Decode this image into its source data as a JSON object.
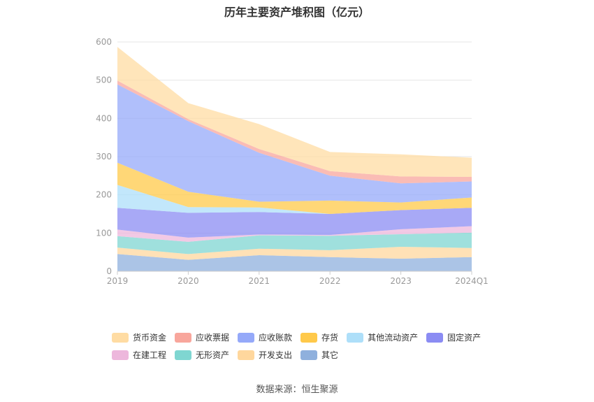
{
  "title": "历年主要资产堆积图（亿元）",
  "source": "数据来源：恒生聚源",
  "chart_data": {
    "type": "area",
    "stacked": true,
    "categories": [
      "2019",
      "2020",
      "2021",
      "2022",
      "2023",
      "2024Q1"
    ],
    "ylim": [
      0,
      600
    ],
    "yticks": [
      0,
      100,
      200,
      300,
      400,
      500,
      600
    ],
    "grid": true,
    "legend_position": "bottom",
    "series": [
      {
        "name": "其它",
        "color": "#8fb0dd",
        "values": [
          45,
          30,
          42,
          37,
          33,
          37
        ]
      },
      {
        "name": "开发支出",
        "color": "#ffd79d",
        "values": [
          17,
          15,
          17,
          18,
          31,
          24
        ]
      },
      {
        "name": "无形资产",
        "color": "#7fd6d1",
        "values": [
          30,
          32,
          35,
          38,
          33,
          40
        ]
      },
      {
        "name": "在建工程",
        "color": "#edb7dc",
        "values": [
          17,
          11,
          2,
          2,
          13,
          17
        ]
      },
      {
        "name": "固定资产",
        "color": "#8b8cf3",
        "values": [
          57,
          65,
          59,
          55,
          50,
          48
        ]
      },
      {
        "name": "其他流动资产",
        "color": "#aedff9",
        "values": [
          60,
          15,
          12,
          0,
          0,
          0
        ]
      },
      {
        "name": "存货",
        "color": "#ffc94a",
        "values": [
          58,
          40,
          15,
          35,
          20,
          27
        ]
      },
      {
        "name": "应收账款",
        "color": "#95a9f9",
        "values": [
          205,
          185,
          128,
          65,
          50,
          42
        ]
      },
      {
        "name": "应收票据",
        "color": "#f8a69c",
        "values": [
          10,
          5,
          10,
          12,
          18,
          12
        ]
      },
      {
        "name": "货币资金",
        "color": "#ffdca3",
        "values": [
          88,
          42,
          65,
          50,
          58,
          50
        ]
      }
    ]
  },
  "legend": [
    [
      "货币资金",
      "应收票据",
      "应收账款",
      "存货",
      "其他流动资产",
      "固定资产"
    ],
    [
      "在建工程",
      "无形资产",
      "开发支出",
      "其它"
    ]
  ],
  "legend_colors": {
    "货币资金": "#ffdca3",
    "应收票据": "#f8a69c",
    "应收账款": "#95a9f9",
    "存货": "#ffc94a",
    "其他流动资产": "#aedff9",
    "固定资产": "#8b8cf3",
    "在建工程": "#edb7dc",
    "无形资产": "#7fd6d1",
    "开发支出": "#ffd79d",
    "其它": "#8fb0dd"
  }
}
